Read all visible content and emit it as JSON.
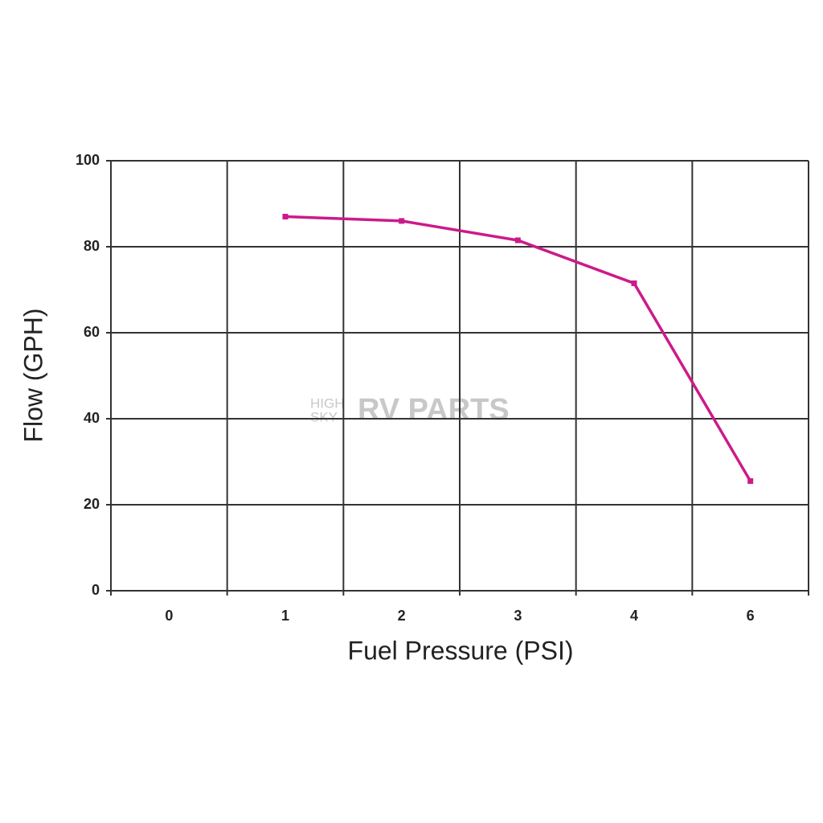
{
  "chart_data": {
    "type": "line",
    "x_label": "Fuel Pressure (PSI)",
    "y_label": "Flow (GPH)",
    "categories": [
      "0",
      "1",
      "2",
      "3",
      "4",
      "6"
    ],
    "series": [
      {
        "name": "Flow",
        "color": "#cc1a8a",
        "values": [
          null,
          87,
          86,
          81.5,
          71.5,
          25.5
        ]
      }
    ],
    "ylim": [
      0,
      100
    ],
    "yticks": [
      0,
      20,
      40,
      60,
      80,
      100
    ],
    "grid": true,
    "watermark": [
      "HIGH",
      "SKY",
      "RV PARTS"
    ]
  }
}
